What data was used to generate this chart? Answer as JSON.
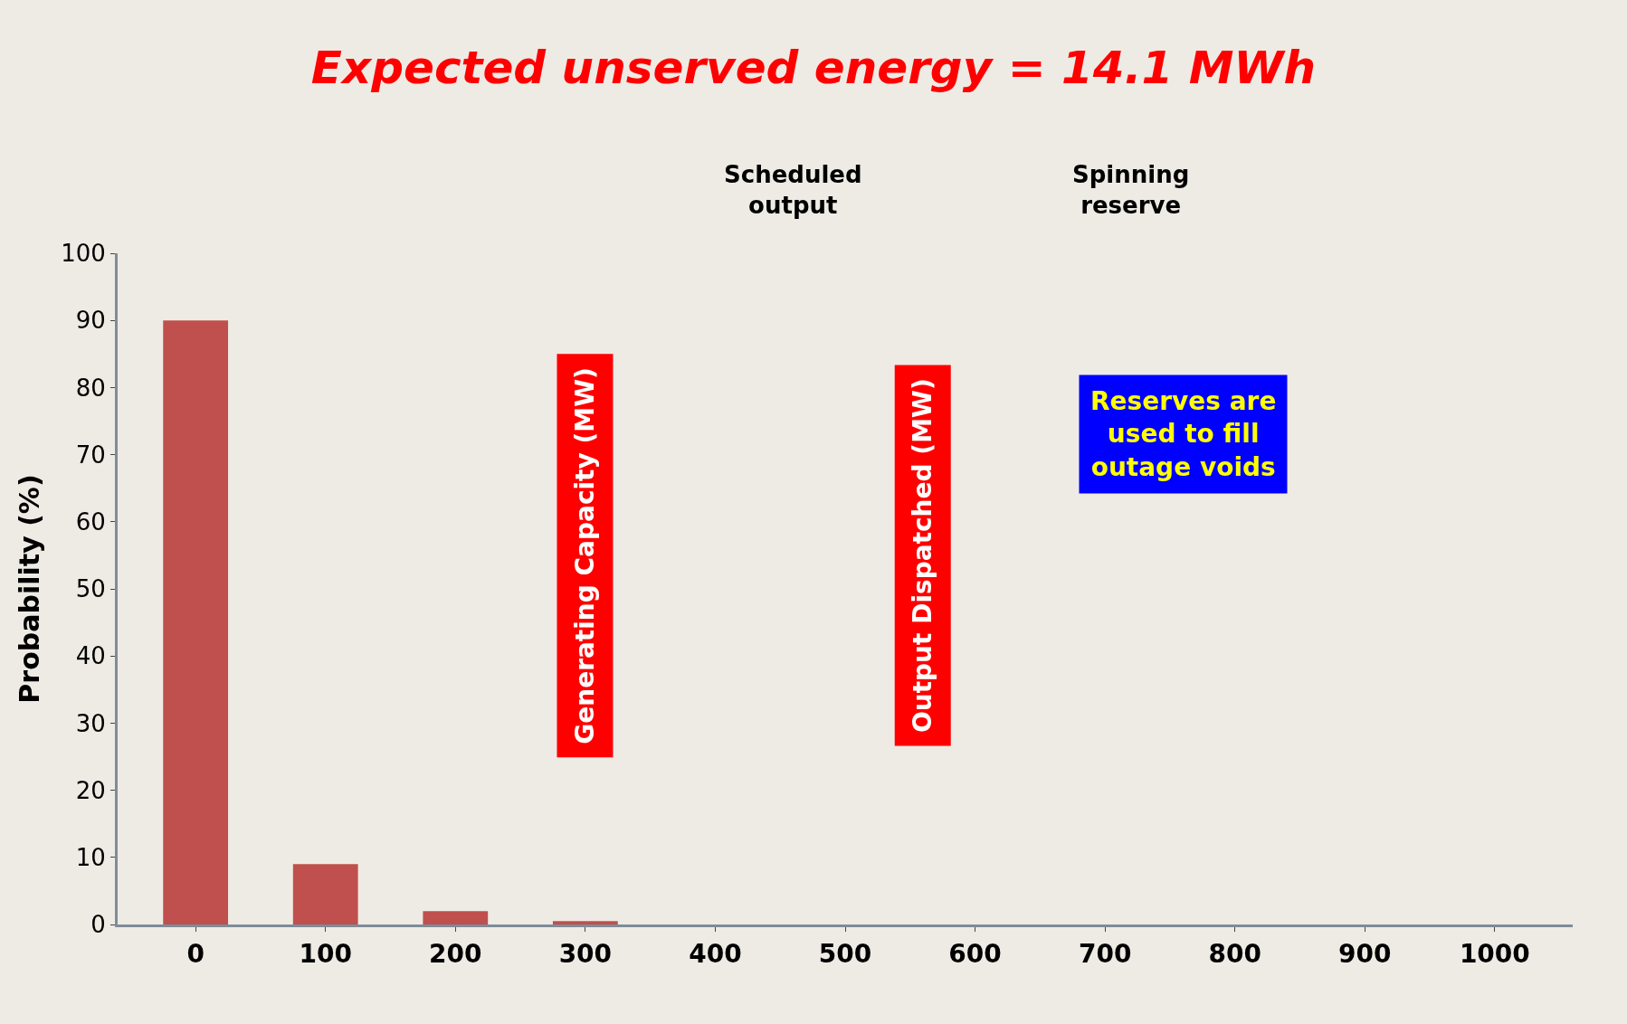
{
  "chart_data": {
    "type": "bar",
    "title": "Expected unserved energy = 14.1 MWh",
    "ylabel": "Probability (%)",
    "categories": [
      "0",
      "100",
      "200",
      "300",
      "400",
      "500",
      "600",
      "700",
      "800",
      "900",
      "1000"
    ],
    "values": [
      90,
      9,
      2,
      0.5,
      0,
      0,
      0,
      0,
      0,
      0,
      0
    ],
    "color": "#c0504d",
    "ylim": [
      0,
      100
    ],
    "yticks": [
      0,
      10,
      20,
      30,
      40,
      50,
      60,
      70,
      80,
      90,
      100
    ],
    "annotations": [
      "Scheduled output",
      "Spinning reserve",
      "Generating Capacity (MW)",
      "Output Dispatched (MW)",
      "Reserves are used to fill outage voids"
    ]
  }
}
